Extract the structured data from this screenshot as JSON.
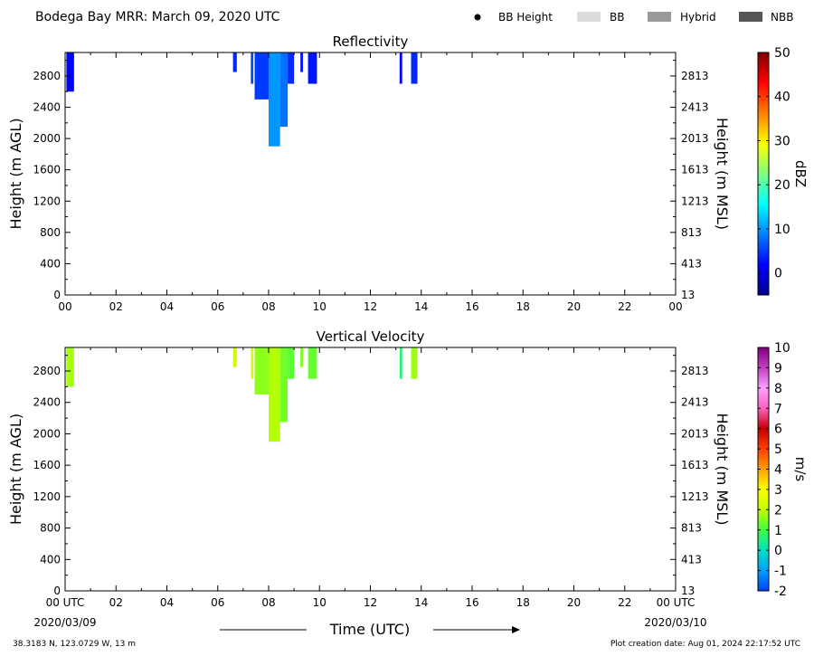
{
  "header": {
    "title": "Bodega Bay MRR:  March 09, 2020 UTC",
    "legend": [
      {
        "label": "BB Height",
        "kind": "dot",
        "color": "#000000"
      },
      {
        "label": "BB",
        "kind": "swatch",
        "color": "#dcdcdc"
      },
      {
        "label": "Hybrid",
        "kind": "swatch",
        "color": "#999999"
      },
      {
        "label": "NBB",
        "kind": "swatch",
        "color": "#555555"
      }
    ]
  },
  "footer": {
    "location": "38.3183 N, 123.0729 W, 13 m",
    "creation": "Plot creation date: Aug 01, 2024 22:17:52 UTC",
    "xlabel": "Time (UTC)",
    "date_start": "2020/03/09",
    "date_end": "2020/03/10"
  },
  "chart_data": [
    {
      "type": "heatmap",
      "title": "Reflectivity",
      "ylabel": "Height (m AGL)",
      "ylabel_right": "Height (m MSL)",
      "xlim": [
        0,
        24
      ],
      "ylim": [
        0,
        3100
      ],
      "x_ticks": [
        "00",
        "02",
        "04",
        "06",
        "08",
        "10",
        "12",
        "14",
        "16",
        "18",
        "20",
        "22",
        "00"
      ],
      "y_ticks": [
        0,
        400,
        800,
        1200,
        1600,
        2000,
        2400,
        2800
      ],
      "y_ticks_right": [
        13,
        413,
        813,
        1213,
        1613,
        2013,
        2413,
        2813
      ],
      "colorbar": {
        "label": "dBZ",
        "range": [
          -5,
          50
        ],
        "ticks": [
          0,
          10,
          20,
          30,
          40,
          50
        ],
        "colors": [
          "#00008f",
          "#0000ff",
          "#0080ff",
          "#00ffff",
          "#80ff80",
          "#ffff00",
          "#ff8000",
          "#ff0000",
          "#800000"
        ]
      },
      "echoes": [
        {
          "t0": 0.05,
          "t1": 0.35,
          "top": 3100,
          "base": 2600,
          "value": 2
        },
        {
          "t0": 6.6,
          "t1": 6.75,
          "top": 3100,
          "base": 2850,
          "value": 4
        },
        {
          "t0": 7.3,
          "t1": 7.4,
          "top": 3100,
          "base": 2700,
          "value": 6
        },
        {
          "t0": 7.45,
          "t1": 8.0,
          "top": 3100,
          "base": 2500,
          "value": 5
        },
        {
          "t0": 8.0,
          "t1": 8.45,
          "top": 3100,
          "base": 1900,
          "value": 10
        },
        {
          "t0": 8.45,
          "t1": 8.75,
          "top": 3100,
          "base": 2150,
          "value": 8
        },
        {
          "t0": 8.75,
          "t1": 9.0,
          "top": 3100,
          "base": 2700,
          "value": 4
        },
        {
          "t0": 9.25,
          "t1": 9.35,
          "top": 3100,
          "base": 2850,
          "value": 3
        },
        {
          "t0": 9.55,
          "t1": 9.9,
          "top": 3100,
          "base": 2700,
          "value": 3
        },
        {
          "t0": 13.15,
          "t1": 13.25,
          "top": 3100,
          "base": 2700,
          "value": 2
        },
        {
          "t0": 13.6,
          "t1": 13.85,
          "top": 3100,
          "base": 2700,
          "value": 4
        }
      ]
    },
    {
      "type": "heatmap",
      "title": "Vertical Velocity",
      "ylabel": "Height (m AGL)",
      "ylabel_right": "Height (m MSL)",
      "xlim": [
        0,
        24
      ],
      "ylim": [
        0,
        3100
      ],
      "x_ticks": [
        "00 UTC",
        "02",
        "04",
        "06",
        "08",
        "10",
        "12",
        "14",
        "16",
        "18",
        "20",
        "22",
        "00 UTC"
      ],
      "y_ticks": [
        0,
        400,
        800,
        1200,
        1600,
        2000,
        2400,
        2800
      ],
      "y_ticks_right": [
        13,
        413,
        813,
        1213,
        1613,
        2013,
        2413,
        2813
      ],
      "colorbar": {
        "label": "m/s",
        "range": [
          -2,
          10
        ],
        "ticks": [
          -2,
          -1,
          0,
          1,
          2,
          3,
          4,
          5,
          6,
          7,
          8,
          9,
          10
        ],
        "colors": [
          "#0040ff",
          "#00a0ff",
          "#00e0c0",
          "#40ff40",
          "#c0ff00",
          "#ffff00",
          "#ffa000",
          "#ff4000",
          "#c00000",
          "#ff60c0",
          "#ffa0ff",
          "#c040c0",
          "#800080"
        ]
      },
      "echoes": [
        {
          "t0": 0.05,
          "t1": 0.35,
          "top": 3100,
          "base": 2600,
          "value": 1.8
        },
        {
          "t0": 6.6,
          "t1": 6.75,
          "top": 3100,
          "base": 2850,
          "value": 2.2
        },
        {
          "t0": 7.3,
          "t1": 7.4,
          "top": 3100,
          "base": 2700,
          "value": 2.3
        },
        {
          "t0": 7.45,
          "t1": 8.0,
          "top": 3100,
          "base": 2500,
          "value": 1.6
        },
        {
          "t0": 8.0,
          "t1": 8.45,
          "top": 3100,
          "base": 1900,
          "value": 1.9
        },
        {
          "t0": 8.45,
          "t1": 8.75,
          "top": 3100,
          "base": 2150,
          "value": 1.4
        },
        {
          "t0": 8.75,
          "t1": 9.0,
          "top": 3100,
          "base": 2700,
          "value": 1.2
        },
        {
          "t0": 9.25,
          "t1": 9.35,
          "top": 3100,
          "base": 2850,
          "value": 1.5
        },
        {
          "t0": 9.55,
          "t1": 9.9,
          "top": 3100,
          "base": 2700,
          "value": 1.3
        },
        {
          "t0": 13.15,
          "t1": 13.25,
          "top": 3100,
          "base": 2700,
          "value": 0.6
        },
        {
          "t0": 13.6,
          "t1": 13.85,
          "top": 3100,
          "base": 2700,
          "value": 1.7
        }
      ]
    }
  ]
}
